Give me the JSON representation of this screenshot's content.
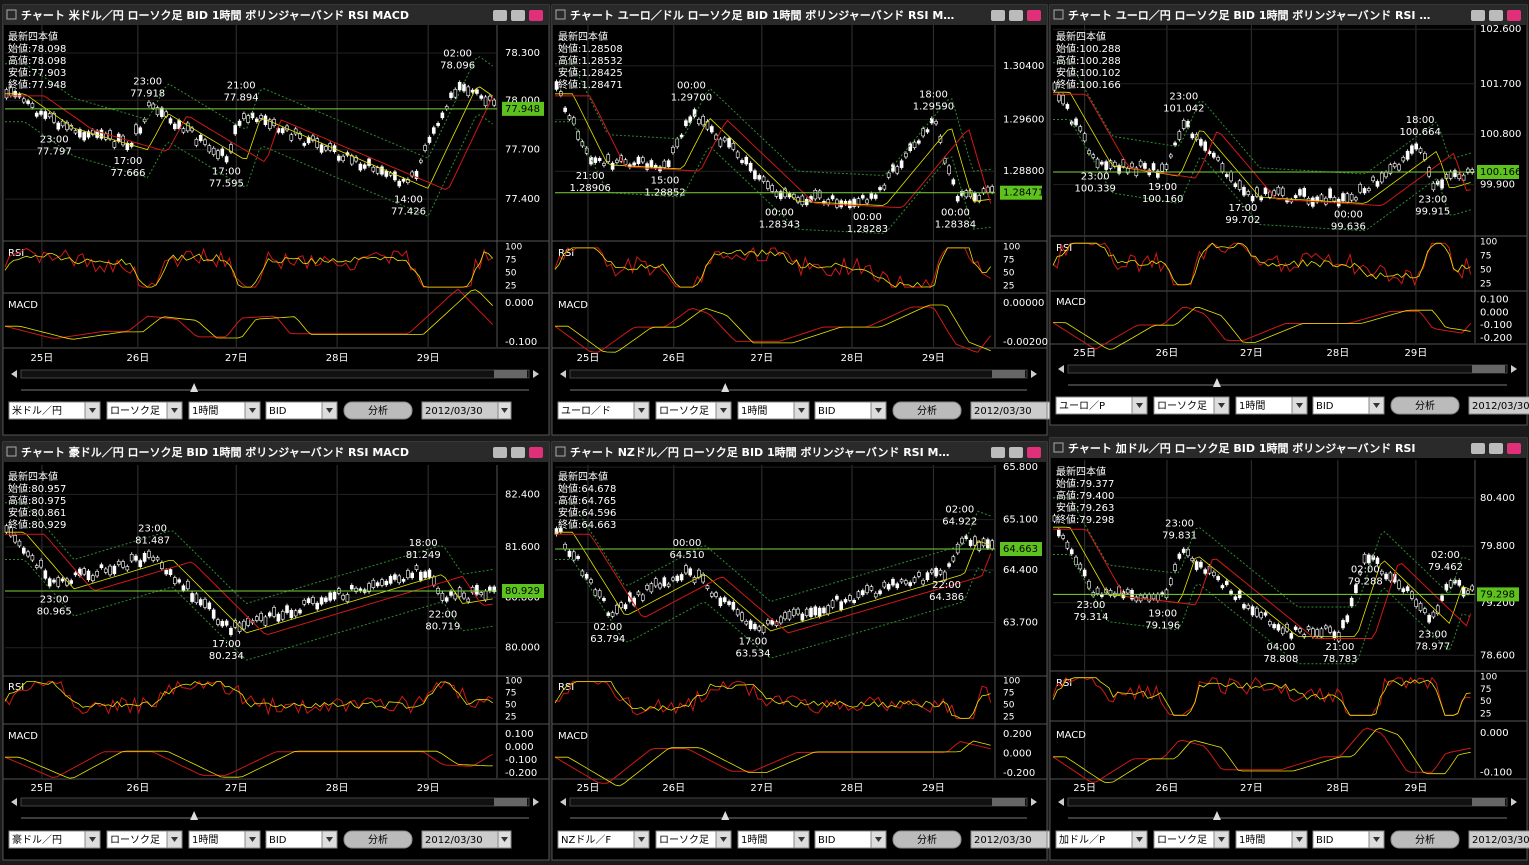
{
  "panels": [
    {
      "title": "チャート 米ドル／円 ローソク足 BID 1時間 ボリンジャーバンド RSI MACD",
      "ohlc": [
        "最新四本値",
        "始値:78.098",
        "高値:78.098",
        "安値:77.903",
        "終値:77.948"
      ],
      "price_ticks": [
        "78.300",
        "78.000",
        "77.700",
        "77.400"
      ],
      "current_price": "77.948",
      "annotations": [
        {
          "time": "23:00",
          "price": "77.918"
        },
        {
          "time": "21:00",
          "price": "77.894"
        },
        {
          "time": "02:00",
          "price": "78.096"
        },
        {
          "time": "23:00",
          "price": "77.797"
        },
        {
          "time": "17:00",
          "price": "77.666"
        },
        {
          "time": "17:00",
          "price": "77.595"
        },
        {
          "time": "14:00",
          "price": "77.426"
        }
      ],
      "rsi_label": "RSI",
      "rsi_ticks": [
        "100",
        "75",
        "50",
        "25"
      ],
      "macd_label": "MACD",
      "macd_ticks": [
        "0.000",
        "-0.100"
      ],
      "dates": [
        "25日",
        "26日",
        "27日",
        "28日",
        "29日"
      ],
      "toolbar": {
        "pair": "米ドル／円",
        "chart_type": "ローソク足",
        "interval": "1時間",
        "side": "BID",
        "button": "分析",
        "date": "2012/03/30"
      }
    },
    {
      "title": "チャート ユーロ／ドル ローソク足 BID 1時間 ボリンジャーバンド RSI M…",
      "ohlc": [
        "最新四本値",
        "始値:1.28508",
        "高値:1.28532",
        "安値:1.28425",
        "終値:1.28471"
      ],
      "price_ticks": [
        "1.30400",
        "1.29600",
        "1.28800"
      ],
      "current_price": "1.28471",
      "annotations": [
        {
          "time": "00:00",
          "price": "1.29700"
        },
        {
          "time": "18:00",
          "price": "1.29590"
        },
        {
          "time": "21:00",
          "price": "1.28906"
        },
        {
          "time": "15:00",
          "price": "1.28852"
        },
        {
          "time": "00:00",
          "price": "1.28343"
        },
        {
          "time": "00:00",
          "price": "1.28283"
        },
        {
          "time": "00:00",
          "price": "1.28384"
        }
      ],
      "rsi_label": "RSI",
      "rsi_ticks": [
        "100",
        "75",
        "50",
        "25"
      ],
      "macd_label": "MACD",
      "macd_ticks": [
        "0.00000",
        "-0.00200"
      ],
      "dates": [
        "25日",
        "26日",
        "27日",
        "28日",
        "29日"
      ],
      "toolbar": {
        "pair": "ユーロ／ド",
        "chart_type": "ローソク足",
        "interval": "1時間",
        "side": "BID",
        "button": "分析",
        "date": "2012/03/30"
      }
    },
    {
      "title": "チャート ユーロ／円 ローソク足 BID 1時間 ボリンジャーバンド RSI …",
      "ohlc": [
        "最新四本値",
        "始値:100.288",
        "高値:100.288",
        "安値:100.102",
        "終値:100.166"
      ],
      "price_ticks": [
        "102.600",
        "101.700",
        "100.800",
        "99.900"
      ],
      "current_price": "100.166",
      "annotations": [
        {
          "time": "23:00",
          "price": "101.042"
        },
        {
          "time": "18:00",
          "price": "100.664"
        },
        {
          "time": "23:00",
          "price": "100.339"
        },
        {
          "time": "19:00",
          "price": "100.160"
        },
        {
          "time": "17:00",
          "price": "99.702"
        },
        {
          "time": "00:00",
          "price": "99.636"
        },
        {
          "time": "23:00",
          "price": "99.915"
        }
      ],
      "rsi_label": "RSI",
      "rsi_ticks": [
        "100",
        "75",
        "50",
        "25"
      ],
      "macd_label": "MACD",
      "macd_ticks": [
        "0.100",
        "0.000",
        "-0.100",
        "-0.200"
      ],
      "dates": [
        "25日",
        "26日",
        "27日",
        "28日",
        "29日"
      ],
      "toolbar": {
        "pair": "ユーロ／P",
        "chart_type": "ローソク足",
        "interval": "1時間",
        "side": "BID",
        "button": "分析",
        "date": "2012/03/30"
      }
    },
    {
      "title": "チャート 豪ドル／円 ローソク足 BID 1時間 ボリンジャーバンド RSI MACD",
      "ohlc": [
        "最新四本値",
        "始値:80.957",
        "高値:80.975",
        "安値:80.861",
        "終値:80.929"
      ],
      "price_ticks": [
        "82.400",
        "81.600",
        "80.800",
        "80.000"
      ],
      "current_price": "80.929",
      "annotations": [
        {
          "time": "23:00",
          "price": "81.487"
        },
        {
          "time": "18:00",
          "price": "81.249"
        },
        {
          "time": "23:00",
          "price": "80.965"
        },
        {
          "time": "17:00",
          "price": "80.234"
        },
        {
          "time": "22:00",
          "price": "80.719"
        }
      ],
      "rsi_label": "RSI",
      "rsi_ticks": [
        "100",
        "75",
        "50",
        "25"
      ],
      "macd_label": "MACD",
      "macd_ticks": [
        "0.100",
        "0.000",
        "-0.100",
        "-0.200"
      ],
      "dates": [
        "25日",
        "26日",
        "27日",
        "28日",
        "29日"
      ],
      "toolbar": {
        "pair": "豪ドル／円",
        "chart_type": "ローソク足",
        "interval": "1時間",
        "side": "BID",
        "button": "分析",
        "date": "2012/03/30"
      }
    },
    {
      "title": "チャート NZドル／円 ローソク足 BID 1時間 ボリンジャーバンド RSI M…",
      "ohlc": [
        "最新四本値",
        "始値:64.678",
        "高値:64.765",
        "安値:64.596",
        "終値:64.663"
      ],
      "price_ticks": [
        "65.800",
        "65.100",
        "64.400",
        "63.700"
      ],
      "current_price": "64.663",
      "annotations": [
        {
          "time": "00:00",
          "price": "64.510"
        },
        {
          "time": "02:00",
          "price": "64.922"
        },
        {
          "time": "02:00",
          "price": "63.794"
        },
        {
          "time": "17:00",
          "price": "63.534"
        },
        {
          "time": "22:00",
          "price": "64.386"
        }
      ],
      "rsi_label": "RSI",
      "rsi_ticks": [
        "100",
        "75",
        "50",
        "25"
      ],
      "macd_label": "MACD",
      "macd_ticks": [
        "0.200",
        "0.000",
        "-0.200"
      ],
      "dates": [
        "25日",
        "26日",
        "27日",
        "28日",
        "29日"
      ],
      "toolbar": {
        "pair": "NZドル／F",
        "chart_type": "ローソク足",
        "interval": "1時間",
        "side": "BID",
        "button": "分析",
        "date": "2012/03/30"
      }
    },
    {
      "title": "チャート 加ドル／円 ローソク足 BID 1時間 ボリンジャーバンド RSI",
      "ohlc": [
        "最新四本値",
        "始値:79.377",
        "高値:79.400",
        "安値:79.263",
        "終値:79.298"
      ],
      "price_ticks": [
        "80.400",
        "79.800",
        "79.200",
        "78.600"
      ],
      "current_price": "79.298",
      "annotations": [
        {
          "time": "23:00",
          "price": "79.831"
        },
        {
          "time": "02:00",
          "price": "79.288"
        },
        {
          "time": "02:00",
          "price": "79.462"
        },
        {
          "time": "23:00",
          "price": "79.314"
        },
        {
          "time": "19:00",
          "price": "79.196"
        },
        {
          "time": "04:00",
          "price": "78.808"
        },
        {
          "time": "21:00",
          "price": "78.783"
        },
        {
          "time": "23:00",
          "price": "78.977"
        }
      ],
      "rsi_label": "RSI",
      "rsi_ticks": [
        "100",
        "75",
        "50",
        "25"
      ],
      "macd_label": "MACD",
      "macd_ticks": [
        "0.000",
        "-0.100"
      ],
      "dates": [
        "25日",
        "26日",
        "27日",
        "28日",
        "29日"
      ],
      "toolbar": {
        "pair": "加ドル／P",
        "chart_type": "ローソク足",
        "interval": "1時間",
        "side": "BID",
        "button": "分析",
        "date": "2012/03/30"
      }
    }
  ]
}
